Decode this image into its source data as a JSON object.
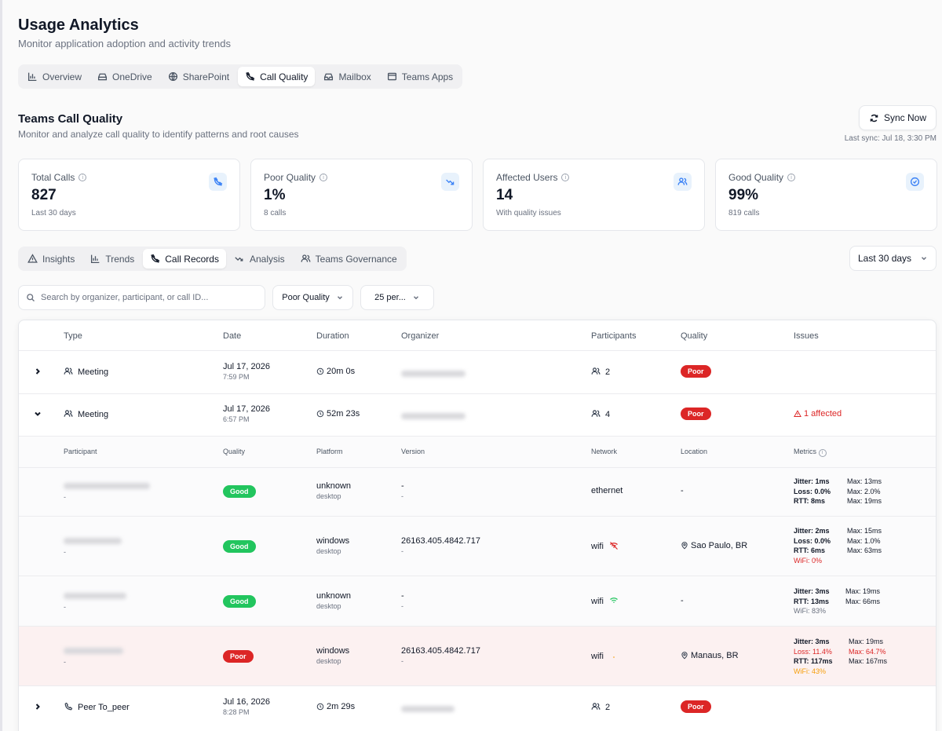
{
  "page": {
    "title": "Usage Analytics",
    "subtitle": "Monitor application adoption and activity trends"
  },
  "main_tabs": [
    {
      "label": "Overview",
      "icon": "bar-chart-icon"
    },
    {
      "label": "OneDrive",
      "icon": "drive-icon"
    },
    {
      "label": "SharePoint",
      "icon": "globe-icon"
    },
    {
      "label": "Call Quality",
      "icon": "phone-off-icon",
      "active": true
    },
    {
      "label": "Mailbox",
      "icon": "inbox-icon"
    },
    {
      "label": "Teams Apps",
      "icon": "window-icon"
    }
  ],
  "section": {
    "title": "Teams Call Quality",
    "subtitle": "Monitor and analyze call quality to identify patterns and root causes",
    "sync_label": "Sync Now",
    "last_sync": "Last sync: Jul 18, 3:30 PM"
  },
  "stats": [
    {
      "label": "Total Calls",
      "value": "827",
      "note": "Last 30 days",
      "icon": "phone-off-icon"
    },
    {
      "label": "Poor Quality",
      "value": "1%",
      "note": "8 calls",
      "icon": "trending-down-icon"
    },
    {
      "label": "Affected Users",
      "value": "14",
      "note": "With quality issues",
      "icon": "users-icon"
    },
    {
      "label": "Good Quality",
      "value": "99%",
      "note": "819 calls",
      "icon": "check-circle-icon"
    }
  ],
  "sub_tabs": [
    {
      "label": "Insights",
      "icon": "warning-icon"
    },
    {
      "label": "Trends",
      "icon": "bar-chart-icon"
    },
    {
      "label": "Call Records",
      "icon": "phone-off-icon",
      "active": true
    },
    {
      "label": "Analysis",
      "icon": "trend-icon"
    },
    {
      "label": "Teams Governance",
      "icon": "users-icon"
    }
  ],
  "filters": {
    "range": "Last 30 days",
    "search_placeholder": "Search by organizer, participant, or call ID...",
    "quality": "Poor Quality",
    "page_size": "25 per..."
  },
  "table": {
    "headers": {
      "type": "Type",
      "date": "Date",
      "duration": "Duration",
      "organizer": "Organizer",
      "participants": "Participants",
      "quality": "Quality",
      "issues": "Issues"
    },
    "detail_headers": {
      "participant": "Participant",
      "quality": "Quality",
      "platform": "Platform",
      "version": "Version",
      "network": "Network",
      "location": "Location",
      "metrics": "Metrics"
    },
    "calls": [
      {
        "type": "Meeting",
        "date": "Jul 17, 2026",
        "time": "7:59 PM",
        "duration": "20m 0s",
        "participants": "2",
        "quality": "Poor",
        "issues": ""
      },
      {
        "type": "Meeting",
        "date": "Jul 17, 2026",
        "time": "6:57 PM",
        "duration": "52m 23s",
        "participants": "4",
        "quality": "Poor",
        "issues": "1 affected"
      },
      {
        "type": "Peer To_peer",
        "date": "Jul 16, 2026",
        "time": "8:28 PM",
        "duration": "2m 29s",
        "participants": "2",
        "quality": "Poor",
        "issues": ""
      }
    ],
    "participants": [
      {
        "sub": "-",
        "quality": "Good",
        "platform": "unknown",
        "platform_sub": "desktop",
        "version": "-",
        "version_sub": "-",
        "network": "ethernet",
        "location": "-",
        "m1": "Jitter: 1ms",
        "m2": "Loss: 0.0%",
        "m3": "RTT: 8ms",
        "m4": "",
        "x1": "Max: 13ms",
        "x2": "Max: 2.0%",
        "x3": "Max: 19ms"
      },
      {
        "sub": "-",
        "quality": "Good",
        "platform": "windows",
        "platform_sub": "desktop",
        "version": "26163.405.4842.717",
        "version_sub": "-",
        "network": "wifi",
        "location": "Sao Paulo, BR",
        "m1": "Jitter: 2ms",
        "m2": "Loss: 0.0%",
        "m3": "RTT: 6ms",
        "m4": "WiFi: 0%",
        "x1": "Max: 15ms",
        "x2": "Max: 1.0%",
        "x3": "Max: 63ms"
      },
      {
        "sub": "-",
        "quality": "Good",
        "platform": "unknown",
        "platform_sub": "desktop",
        "version": "-",
        "version_sub": "-",
        "network": "wifi",
        "location": "-",
        "m1": "Jitter: 3ms",
        "m2": "RTT: 13ms",
        "m3": "WiFi: 83%",
        "m4": "",
        "x1": "Max: 19ms",
        "x2": "Max: 66ms",
        "x3": ""
      },
      {
        "sub": "-",
        "quality": "Poor",
        "platform": "windows",
        "platform_sub": "desktop",
        "version": "26163.405.4842.717",
        "version_sub": "-",
        "network": "wifi",
        "location": "Manaus, BR",
        "m1": "Jitter: 3ms",
        "m2": "Loss: 11.4%",
        "m3": "RTT: 117ms",
        "m4": "WiFi: 43%",
        "x1": "Max: 19ms",
        "x2": "Max: 64.7%",
        "x3": "Max: 167ms"
      }
    ]
  },
  "colors": {
    "accent": "#3b82f6",
    "poor": "#dc2626",
    "good": "#22c55e",
    "warning": "#f59e0b"
  }
}
